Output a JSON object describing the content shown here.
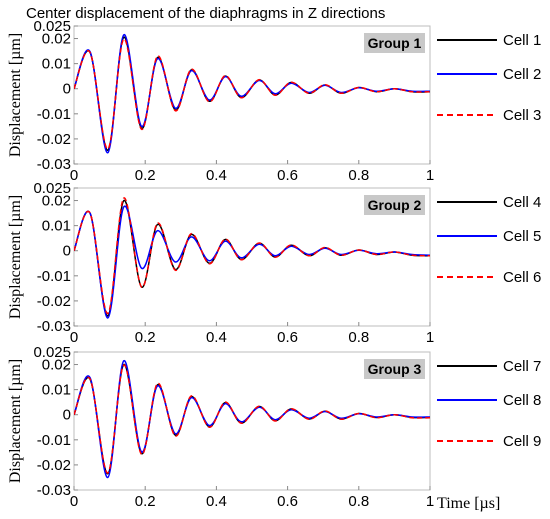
{
  "title": "Center displacement of the diaphragms in Z directions",
  "x_axis_label": "Time [µs]",
  "legend_colors": [
    "#000000",
    "#0000ff",
    "#ff0000"
  ],
  "chart_data": [
    {
      "type": "line",
      "group_label": "Group 1",
      "ylabel": "Displacement [µm]",
      "xlim": [
        0,
        1
      ],
      "ylim": [
        -0.03,
        0.025
      ],
      "x_ticks": [
        "0",
        "0.2",
        "0.4",
        "0.6",
        "0.8",
        "1"
      ],
      "y_ticks": [
        "0.025",
        "0.02",
        "0.01",
        "0",
        "-0.01",
        "-0.02",
        "-0.03"
      ],
      "grid": false,
      "legend_position": "right",
      "series": [
        {
          "name": "Cell 1",
          "color": "#000000",
          "style": "solid",
          "x": [
            0,
            0.045,
            0.095,
            0.14,
            0.19,
            0.235,
            0.285,
            0.33,
            0.38,
            0.425,
            0.47,
            0.52,
            0.565,
            0.61,
            0.66,
            0.705,
            0.75,
            0.8,
            0.85,
            0.9,
            0.95,
            1.0
          ],
          "y": [
            0,
            0.0145,
            -0.0245,
            0.0205,
            -0.0158,
            0.0125,
            -0.0085,
            0.0075,
            -0.005,
            0.005,
            -0.0035,
            0.0035,
            -0.0025,
            0.0025,
            -0.0018,
            0.0015,
            -0.0018,
            0.0005,
            -0.0012,
            0.0,
            -0.0012,
            -0.0012
          ]
        },
        {
          "name": "Cell 2",
          "color": "#0000ff",
          "style": "solid",
          "x": [
            0,
            0.045,
            0.095,
            0.14,
            0.19,
            0.235,
            0.285,
            0.33,
            0.38,
            0.425,
            0.47,
            0.52,
            0.565,
            0.61,
            0.66,
            0.705,
            0.75,
            0.8,
            0.85,
            0.9,
            0.95,
            1.0
          ],
          "y": [
            0,
            0.0148,
            -0.0255,
            0.0215,
            -0.015,
            0.012,
            -0.0078,
            0.0072,
            -0.0045,
            0.0048,
            -0.003,
            0.0033,
            -0.002,
            0.0022,
            -0.0015,
            0.0014,
            -0.0015,
            0.0004,
            -0.001,
            0.0,
            -0.001,
            -0.001
          ]
        },
        {
          "name": "Cell 3",
          "color": "#ff0000",
          "style": "dashed",
          "x": [
            0,
            0.045,
            0.095,
            0.14,
            0.19,
            0.235,
            0.285,
            0.33,
            0.38,
            0.425,
            0.47,
            0.52,
            0.565,
            0.61,
            0.66,
            0.705,
            0.75,
            0.8,
            0.85,
            0.9,
            0.95,
            1.0
          ],
          "y": [
            0,
            0.0145,
            -0.024,
            0.0198,
            -0.0162,
            0.013,
            -0.0088,
            0.0078,
            -0.0052,
            0.0052,
            -0.0036,
            0.0036,
            -0.0026,
            0.0026,
            -0.0018,
            0.0016,
            -0.0018,
            0.0005,
            -0.0012,
            0.0,
            -0.0012,
            -0.0012
          ]
        }
      ]
    },
    {
      "type": "line",
      "group_label": "Group 2",
      "ylabel": "Displacement [µm]",
      "xlim": [
        0,
        1
      ],
      "ylim": [
        -0.03,
        0.025
      ],
      "x_ticks": [
        "0",
        "0.2",
        "0.4",
        "0.6",
        "0.8",
        "1"
      ],
      "y_ticks": [
        "0.025",
        "0.02",
        "0.01",
        "0",
        "-0.01",
        "-0.02",
        "-0.03"
      ],
      "grid": false,
      "legend_position": "right",
      "series": [
        {
          "name": "Cell 4",
          "color": "#000000",
          "style": "solid",
          "x": [
            0,
            0.045,
            0.095,
            0.14,
            0.19,
            0.235,
            0.285,
            0.33,
            0.38,
            0.425,
            0.47,
            0.52,
            0.565,
            0.61,
            0.66,
            0.705,
            0.75,
            0.8,
            0.85,
            0.9,
            0.95,
            1.0
          ],
          "y": [
            0,
            0.015,
            -0.026,
            0.02,
            -0.0145,
            0.0105,
            -0.0075,
            0.0065,
            -0.005,
            0.0045,
            -0.0035,
            0.003,
            -0.0025,
            0.0022,
            -0.002,
            0.0012,
            -0.0018,
            0.0003,
            -0.0015,
            -0.0005,
            -0.0018,
            -0.002
          ]
        },
        {
          "name": "Cell 5",
          "color": "#0000ff",
          "style": "solid",
          "x": [
            0,
            0.045,
            0.095,
            0.14,
            0.19,
            0.235,
            0.285,
            0.33,
            0.38,
            0.425,
            0.47,
            0.52,
            0.565,
            0.61,
            0.66,
            0.705,
            0.75,
            0.8,
            0.85,
            0.9,
            0.95,
            1.0
          ],
          "y": [
            0,
            0.015,
            -0.0268,
            0.0175,
            -0.007,
            0.008,
            -0.0045,
            0.0055,
            -0.004,
            0.0038,
            -0.0028,
            0.0026,
            -0.002,
            0.0018,
            -0.0015,
            0.001,
            -0.0015,
            0.0002,
            -0.0012,
            -0.0005,
            -0.0015,
            -0.0018
          ]
        },
        {
          "name": "Cell 6",
          "color": "#ff0000",
          "style": "dashed",
          "x": [
            0,
            0.045,
            0.095,
            0.14,
            0.19,
            0.235,
            0.285,
            0.33,
            0.38,
            0.425,
            0.47,
            0.52,
            0.565,
            0.61,
            0.66,
            0.705,
            0.75,
            0.8,
            0.85,
            0.9,
            0.95,
            1.0
          ],
          "y": [
            0,
            0.015,
            -0.025,
            0.021,
            -0.0145,
            0.011,
            -0.0078,
            0.0068,
            -0.0052,
            0.0046,
            -0.0036,
            0.0031,
            -0.0026,
            0.0023,
            -0.002,
            0.0013,
            -0.0018,
            0.0003,
            -0.0015,
            -0.0005,
            -0.0018,
            -0.002
          ]
        }
      ]
    },
    {
      "type": "line",
      "group_label": "Group 3",
      "ylabel": "Displacement [µm]",
      "xlim": [
        0,
        1
      ],
      "ylim": [
        -0.03,
        0.025
      ],
      "x_ticks": [
        "0",
        "0.2",
        "0.4",
        "0.6",
        "0.8",
        "1"
      ],
      "y_ticks": [
        "0.025",
        "0.02",
        "0.01",
        "0",
        "-0.01",
        "-0.02",
        "-0.03"
      ],
      "grid": false,
      "legend_position": "right",
      "series": [
        {
          "name": "Cell 7",
          "color": "#000000",
          "style": "solid",
          "x": [
            0,
            0.045,
            0.095,
            0.14,
            0.19,
            0.235,
            0.285,
            0.33,
            0.38,
            0.425,
            0.47,
            0.52,
            0.565,
            0.61,
            0.66,
            0.705,
            0.75,
            0.8,
            0.85,
            0.9,
            0.95,
            1.0
          ],
          "y": [
            0,
            0.0142,
            -0.0235,
            0.02,
            -0.0155,
            0.012,
            -0.0082,
            0.0072,
            -0.0048,
            0.0048,
            -0.0033,
            0.0033,
            -0.0024,
            0.0023,
            -0.0017,
            0.0014,
            -0.0017,
            0.0005,
            -0.0011,
            0.0,
            -0.0011,
            -0.0011
          ]
        },
        {
          "name": "Cell 8",
          "color": "#0000ff",
          "style": "solid",
          "x": [
            0,
            0.045,
            0.095,
            0.14,
            0.19,
            0.235,
            0.285,
            0.33,
            0.38,
            0.425,
            0.47,
            0.52,
            0.565,
            0.61,
            0.66,
            0.705,
            0.75,
            0.8,
            0.85,
            0.9,
            0.95,
            1.0
          ],
          "y": [
            0,
            0.0148,
            -0.025,
            0.0215,
            -0.0148,
            0.0115,
            -0.0076,
            0.0068,
            -0.0043,
            0.0044,
            -0.0028,
            0.003,
            -0.002,
            0.002,
            -0.0014,
            0.0013,
            -0.0014,
            0.0004,
            -0.0009,
            0.0,
            -0.0009,
            -0.0009
          ]
        },
        {
          "name": "Cell 9",
          "color": "#ff0000",
          "style": "dashed",
          "x": [
            0,
            0.045,
            0.095,
            0.14,
            0.19,
            0.235,
            0.285,
            0.33,
            0.38,
            0.425,
            0.47,
            0.52,
            0.565,
            0.61,
            0.66,
            0.705,
            0.75,
            0.8,
            0.85,
            0.9,
            0.95,
            1.0
          ],
          "y": [
            0,
            0.0143,
            -0.0232,
            0.0198,
            -0.0158,
            0.0125,
            -0.0085,
            0.0075,
            -0.005,
            0.005,
            -0.0034,
            0.0034,
            -0.0025,
            0.0024,
            -0.0018,
            0.0015,
            -0.0018,
            0.0005,
            -0.0012,
            0.0,
            -0.0012,
            -0.0012
          ]
        }
      ]
    }
  ]
}
